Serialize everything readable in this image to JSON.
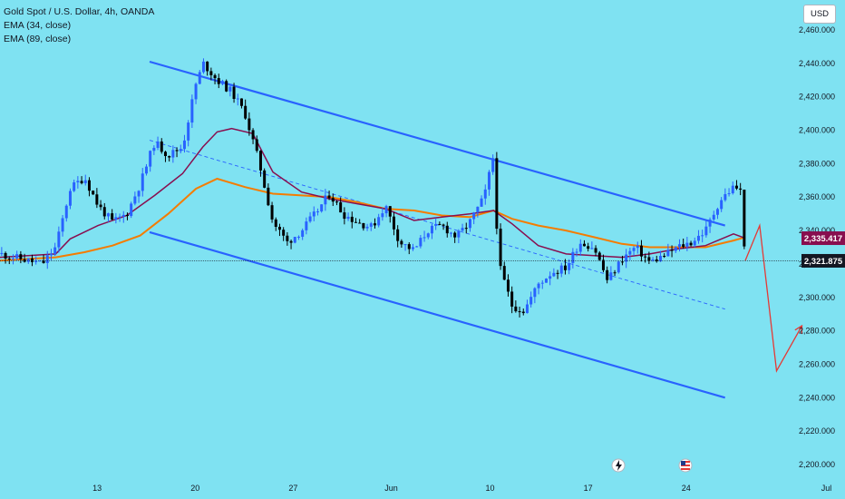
{
  "header": {
    "symbol": "Gold Spot / U.S. Dollar, 4h, OANDA",
    "ema34_label": "EMA (34, close)",
    "ema89_label": "EMA (89, close)",
    "currency": "USD"
  },
  "colors": {
    "background": "#7fe2f2",
    "bull_candle": "#2962ff",
    "bear_candle": "#000000",
    "ema34": "#880e4f",
    "ema89": "#f57c00",
    "channel": "#2962ff",
    "projection": "#e53935",
    "ema34_badge": "#880e4f",
    "last_price_badge": "#131722"
  },
  "price_labels": {
    "ema34_value": "2,335.417",
    "last_price": "2,321.875"
  },
  "chart_data": {
    "type": "candlestick",
    "title": "Gold Spot / U.S. Dollar, 4h, OANDA",
    "timeframe": "4h",
    "y_axis": {
      "ticks": [
        "2,460.000",
        "2,440.000",
        "2,420.000",
        "2,400.000",
        "2,380.000",
        "2,360.000",
        "2,340.000",
        "2,320.000",
        "2,300.000",
        "2,280.000",
        "2,260.000",
        "2,240.000",
        "2,220.000",
        "2,200.000"
      ],
      "tick_values": [
        2460,
        2440,
        2420,
        2400,
        2380,
        2360,
        2340,
        2320,
        2300,
        2280,
        2260,
        2240,
        2220,
        2200
      ],
      "ylim": [
        2197,
        2476
      ]
    },
    "x_axis": {
      "ticks": [
        {
          "label": "13",
          "x": 0.115
        },
        {
          "label": "20",
          "x": 0.231
        },
        {
          "label": "27",
          "x": 0.347
        },
        {
          "label": "Jun",
          "x": 0.463
        },
        {
          "label": "10",
          "x": 0.58
        },
        {
          "label": "17",
          "x": 0.696
        },
        {
          "label": "24",
          "x": 0.812
        },
        {
          "label": "Jul",
          "x": 0.978
        }
      ]
    },
    "price_path": [
      {
        "x": 0.0,
        "y": 2326
      },
      {
        "x": 0.033,
        "y": 2322
      },
      {
        "x": 0.05,
        "y": 2320
      },
      {
        "x": 0.066,
        "y": 2330
      },
      {
        "x": 0.083,
        "y": 2365
      },
      {
        "x": 0.1,
        "y": 2372
      },
      {
        "x": 0.116,
        "y": 2355
      },
      {
        "x": 0.133,
        "y": 2345
      },
      {
        "x": 0.15,
        "y": 2350
      },
      {
        "x": 0.166,
        "y": 2368
      },
      {
        "x": 0.183,
        "y": 2393
      },
      {
        "x": 0.199,
        "y": 2385
      },
      {
        "x": 0.216,
        "y": 2390
      },
      {
        "x": 0.232,
        "y": 2428
      },
      {
        "x": 0.241,
        "y": 2440
      },
      {
        "x": 0.257,
        "y": 2430
      },
      {
        "x": 0.274,
        "y": 2423
      },
      {
        "x": 0.29,
        "y": 2410
      },
      {
        "x": 0.307,
        "y": 2380
      },
      {
        "x": 0.323,
        "y": 2345
      },
      {
        "x": 0.34,
        "y": 2333
      },
      {
        "x": 0.357,
        "y": 2340
      },
      {
        "x": 0.373,
        "y": 2350
      },
      {
        "x": 0.39,
        "y": 2362
      },
      {
        "x": 0.406,
        "y": 2350
      },
      {
        "x": 0.423,
        "y": 2345
      },
      {
        "x": 0.44,
        "y": 2342
      },
      {
        "x": 0.456,
        "y": 2355
      },
      {
        "x": 0.473,
        "y": 2333
      },
      {
        "x": 0.49,
        "y": 2328
      },
      {
        "x": 0.506,
        "y": 2340
      },
      {
        "x": 0.523,
        "y": 2343
      },
      {
        "x": 0.54,
        "y": 2336
      },
      {
        "x": 0.556,
        "y": 2345
      },
      {
        "x": 0.573,
        "y": 2360
      },
      {
        "x": 0.584,
        "y": 2385
      },
      {
        "x": 0.59,
        "y": 2320
      },
      {
        "x": 0.606,
        "y": 2295
      },
      {
        "x": 0.62,
        "y": 2292
      },
      {
        "x": 0.637,
        "y": 2308
      },
      {
        "x": 0.653,
        "y": 2315
      },
      {
        "x": 0.67,
        "y": 2318
      },
      {
        "x": 0.686,
        "y": 2333
      },
      {
        "x": 0.703,
        "y": 2330
      },
      {
        "x": 0.719,
        "y": 2310
      },
      {
        "x": 0.736,
        "y": 2323
      },
      {
        "x": 0.752,
        "y": 2330
      },
      {
        "x": 0.769,
        "y": 2321
      },
      {
        "x": 0.786,
        "y": 2325
      },
      {
        "x": 0.802,
        "y": 2330
      },
      {
        "x": 0.818,
        "y": 2333
      },
      {
        "x": 0.835,
        "y": 2340
      },
      {
        "x": 0.852,
        "y": 2358
      },
      {
        "x": 0.868,
        "y": 2366
      },
      {
        "x": 0.876,
        "y": 2365
      },
      {
        "x": 0.882,
        "y": 2324
      }
    ],
    "ema34_path": [
      {
        "x": 0.0,
        "y": 2324
      },
      {
        "x": 0.066,
        "y": 2326
      },
      {
        "x": 0.083,
        "y": 2335
      },
      {
        "x": 0.116,
        "y": 2343
      },
      {
        "x": 0.15,
        "y": 2349
      },
      {
        "x": 0.183,
        "y": 2361
      },
      {
        "x": 0.216,
        "y": 2374
      },
      {
        "x": 0.24,
        "y": 2390
      },
      {
        "x": 0.257,
        "y": 2399
      },
      {
        "x": 0.274,
        "y": 2401
      },
      {
        "x": 0.299,
        "y": 2398
      },
      {
        "x": 0.323,
        "y": 2375
      },
      {
        "x": 0.357,
        "y": 2363
      },
      {
        "x": 0.39,
        "y": 2359
      },
      {
        "x": 0.423,
        "y": 2356
      },
      {
        "x": 0.456,
        "y": 2353
      },
      {
        "x": 0.49,
        "y": 2346
      },
      {
        "x": 0.523,
        "y": 2348
      },
      {
        "x": 0.556,
        "y": 2350
      },
      {
        "x": 0.584,
        "y": 2352
      },
      {
        "x": 0.606,
        "y": 2344
      },
      {
        "x": 0.637,
        "y": 2331
      },
      {
        "x": 0.67,
        "y": 2326
      },
      {
        "x": 0.703,
        "y": 2325
      },
      {
        "x": 0.736,
        "y": 2324
      },
      {
        "x": 0.769,
        "y": 2326
      },
      {
        "x": 0.802,
        "y": 2329
      },
      {
        "x": 0.835,
        "y": 2331
      },
      {
        "x": 0.868,
        "y": 2338
      },
      {
        "x": 0.882,
        "y": 2335.4
      }
    ],
    "ema89_path": [
      {
        "x": 0.0,
        "y": 2322
      },
      {
        "x": 0.066,
        "y": 2324
      },
      {
        "x": 0.1,
        "y": 2327
      },
      {
        "x": 0.133,
        "y": 2331
      },
      {
        "x": 0.166,
        "y": 2337
      },
      {
        "x": 0.199,
        "y": 2350
      },
      {
        "x": 0.232,
        "y": 2365
      },
      {
        "x": 0.257,
        "y": 2371
      },
      {
        "x": 0.29,
        "y": 2366
      },
      {
        "x": 0.323,
        "y": 2362
      },
      {
        "x": 0.357,
        "y": 2361
      },
      {
        "x": 0.39,
        "y": 2360
      },
      {
        "x": 0.423,
        "y": 2357
      },
      {
        "x": 0.456,
        "y": 2353
      },
      {
        "x": 0.49,
        "y": 2352
      },
      {
        "x": 0.523,
        "y": 2349
      },
      {
        "x": 0.556,
        "y": 2348
      },
      {
        "x": 0.584,
        "y": 2352
      },
      {
        "x": 0.606,
        "y": 2347
      },
      {
        "x": 0.637,
        "y": 2343
      },
      {
        "x": 0.67,
        "y": 2340
      },
      {
        "x": 0.703,
        "y": 2336
      },
      {
        "x": 0.736,
        "y": 2332
      },
      {
        "x": 0.769,
        "y": 2330
      },
      {
        "x": 0.802,
        "y": 2330
      },
      {
        "x": 0.835,
        "y": 2330
      },
      {
        "x": 0.868,
        "y": 2334
      },
      {
        "x": 0.882,
        "y": 2336
      }
    ],
    "channel_upper": [
      {
        "x": 0.177,
        "y": 2441
      },
      {
        "x": 0.858,
        "y": 2343
      }
    ],
    "channel_lower": [
      {
        "x": 0.177,
        "y": 2339
      },
      {
        "x": 0.858,
        "y": 2240
      }
    ],
    "channel_mid": [
      {
        "x": 0.177,
        "y": 2394
      },
      {
        "x": 0.858,
        "y": 2293
      }
    ],
    "projection_path": [
      {
        "x": 0.882,
        "y": 2322
      },
      {
        "x": 0.899,
        "y": 2343
      },
      {
        "x": 0.919,
        "y": 2256
      },
      {
        "x": 0.949,
        "y": 2283
      }
    ],
    "current_price": 2321.875,
    "ema34_last": 2335.417,
    "grid": false
  }
}
